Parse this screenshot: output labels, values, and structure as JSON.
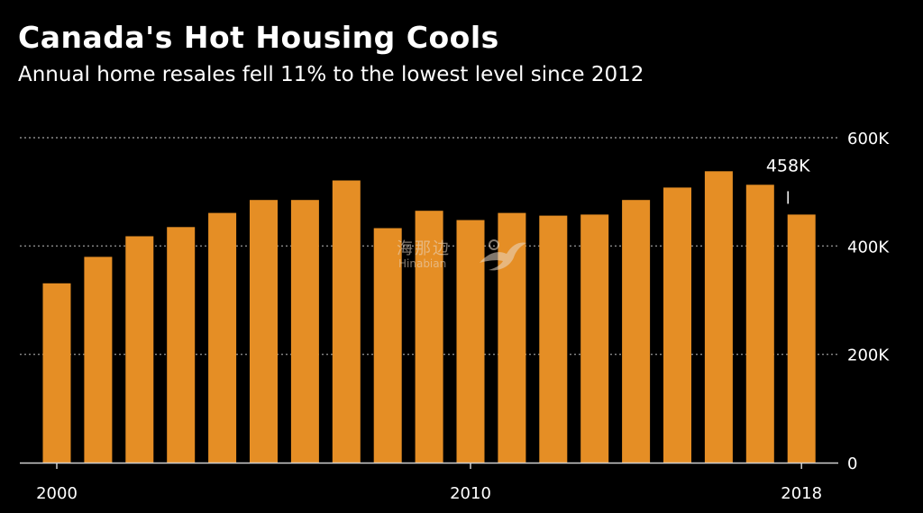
{
  "header": {
    "title": "Canada's Hot Housing Cools",
    "subtitle": "Annual home resales fell 11% to the lowest level since 2012"
  },
  "watermark": {
    "chinese": "海那边",
    "latin": "Hinabian"
  },
  "colors": {
    "background": "#000000",
    "bar": "#E58E25",
    "grid": "#8a8a8a",
    "axis": "#cfcfcf",
    "text": "#ffffff"
  },
  "chart_data": {
    "type": "bar",
    "title": "Canada's Hot Housing Cools",
    "subtitle": "Annual home resales fell 11% to the lowest level since 2012",
    "xlabel": "",
    "ylabel": "",
    "categories": [
      2000,
      2001,
      2002,
      2003,
      2004,
      2005,
      2006,
      2007,
      2008,
      2009,
      2010,
      2011,
      2012,
      2013,
      2014,
      2015,
      2016,
      2017,
      2018
    ],
    "values": [
      331000,
      380000,
      418000,
      435000,
      461000,
      485000,
      485000,
      521000,
      433000,
      465000,
      448000,
      461000,
      456000,
      458000,
      485000,
      508000,
      538000,
      513000,
      458000
    ],
    "ylim": [
      0,
      600000
    ],
    "yticks": [
      0,
      200000,
      400000,
      600000
    ],
    "ytick_labels": [
      "0",
      "200K",
      "400K",
      "600K"
    ],
    "xticks": [
      2000,
      2010,
      2018
    ],
    "xtick_labels": [
      "2000",
      "2010",
      "2018"
    ],
    "grid": true,
    "annotations": [
      {
        "category": 2018,
        "label": "458K"
      }
    ]
  }
}
